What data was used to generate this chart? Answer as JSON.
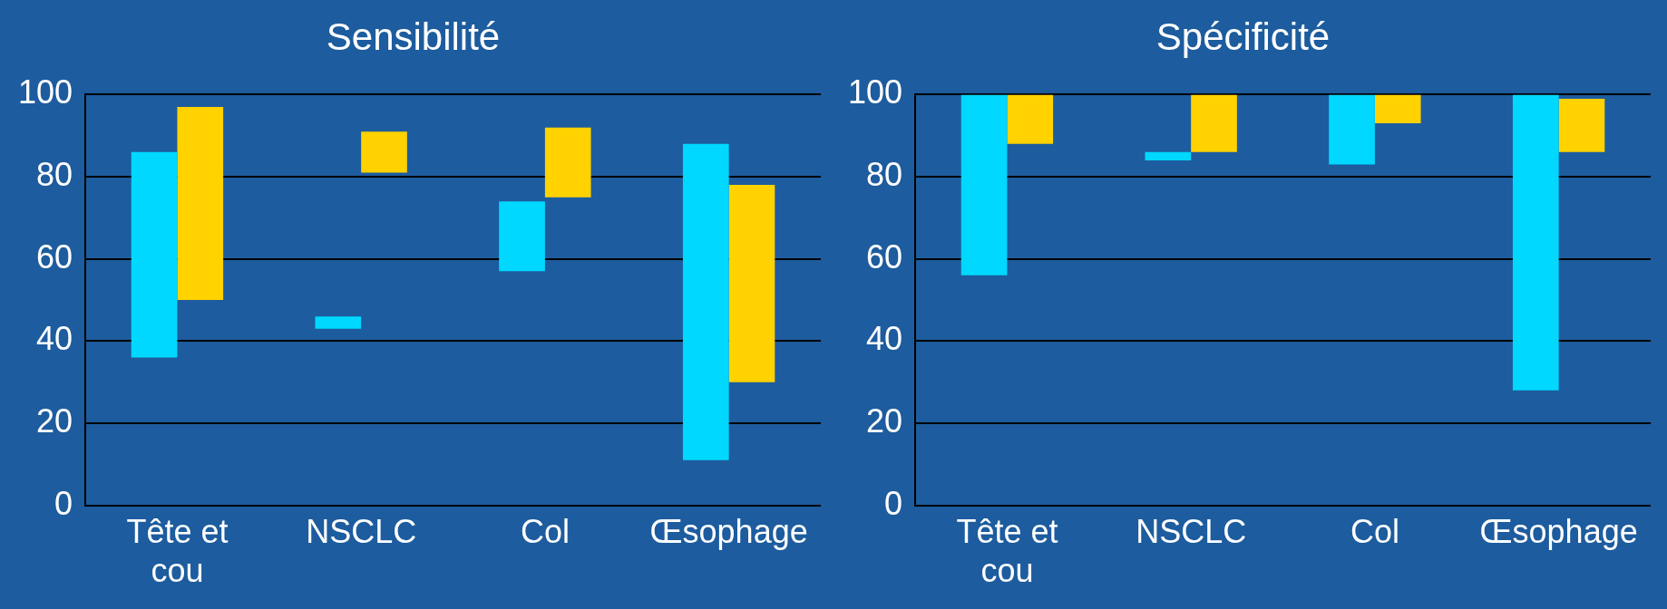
{
  "chart_data": [
    {
      "type": "bar",
      "title": "Sensibilité",
      "categories": [
        "Tête et cou",
        "NSCLC",
        "Col",
        "Œsophage"
      ],
      "ylim": [
        0,
        100
      ],
      "yticks": [
        0,
        20,
        40,
        60,
        80,
        100
      ],
      "grid": "y",
      "legend": false,
      "series": [
        {
          "color": "#00d8ff",
          "base": [
            36,
            43,
            57,
            11
          ],
          "values": [
            50,
            3,
            17,
            77
          ]
        },
        {
          "color": "#ffd200",
          "base": [
            50,
            81,
            75,
            30
          ],
          "values": [
            47,
            10,
            17,
            48
          ]
        }
      ]
    },
    {
      "type": "bar",
      "title": "Spécificité",
      "categories": [
        "Tête et cou",
        "NSCLC",
        "Col",
        "Œsophage"
      ],
      "ylim": [
        0,
        100
      ],
      "yticks": [
        0,
        20,
        40,
        60,
        80,
        100
      ],
      "grid": "y",
      "legend": false,
      "series": [
        {
          "color": "#00d8ff",
          "base": [
            56,
            84,
            83,
            28
          ],
          "values": [
            44,
            2,
            17,
            72
          ]
        },
        {
          "color": "#ffd200",
          "base": [
            88,
            86,
            93,
            86
          ],
          "values": [
            12,
            14,
            7,
            13
          ]
        }
      ]
    }
  ]
}
